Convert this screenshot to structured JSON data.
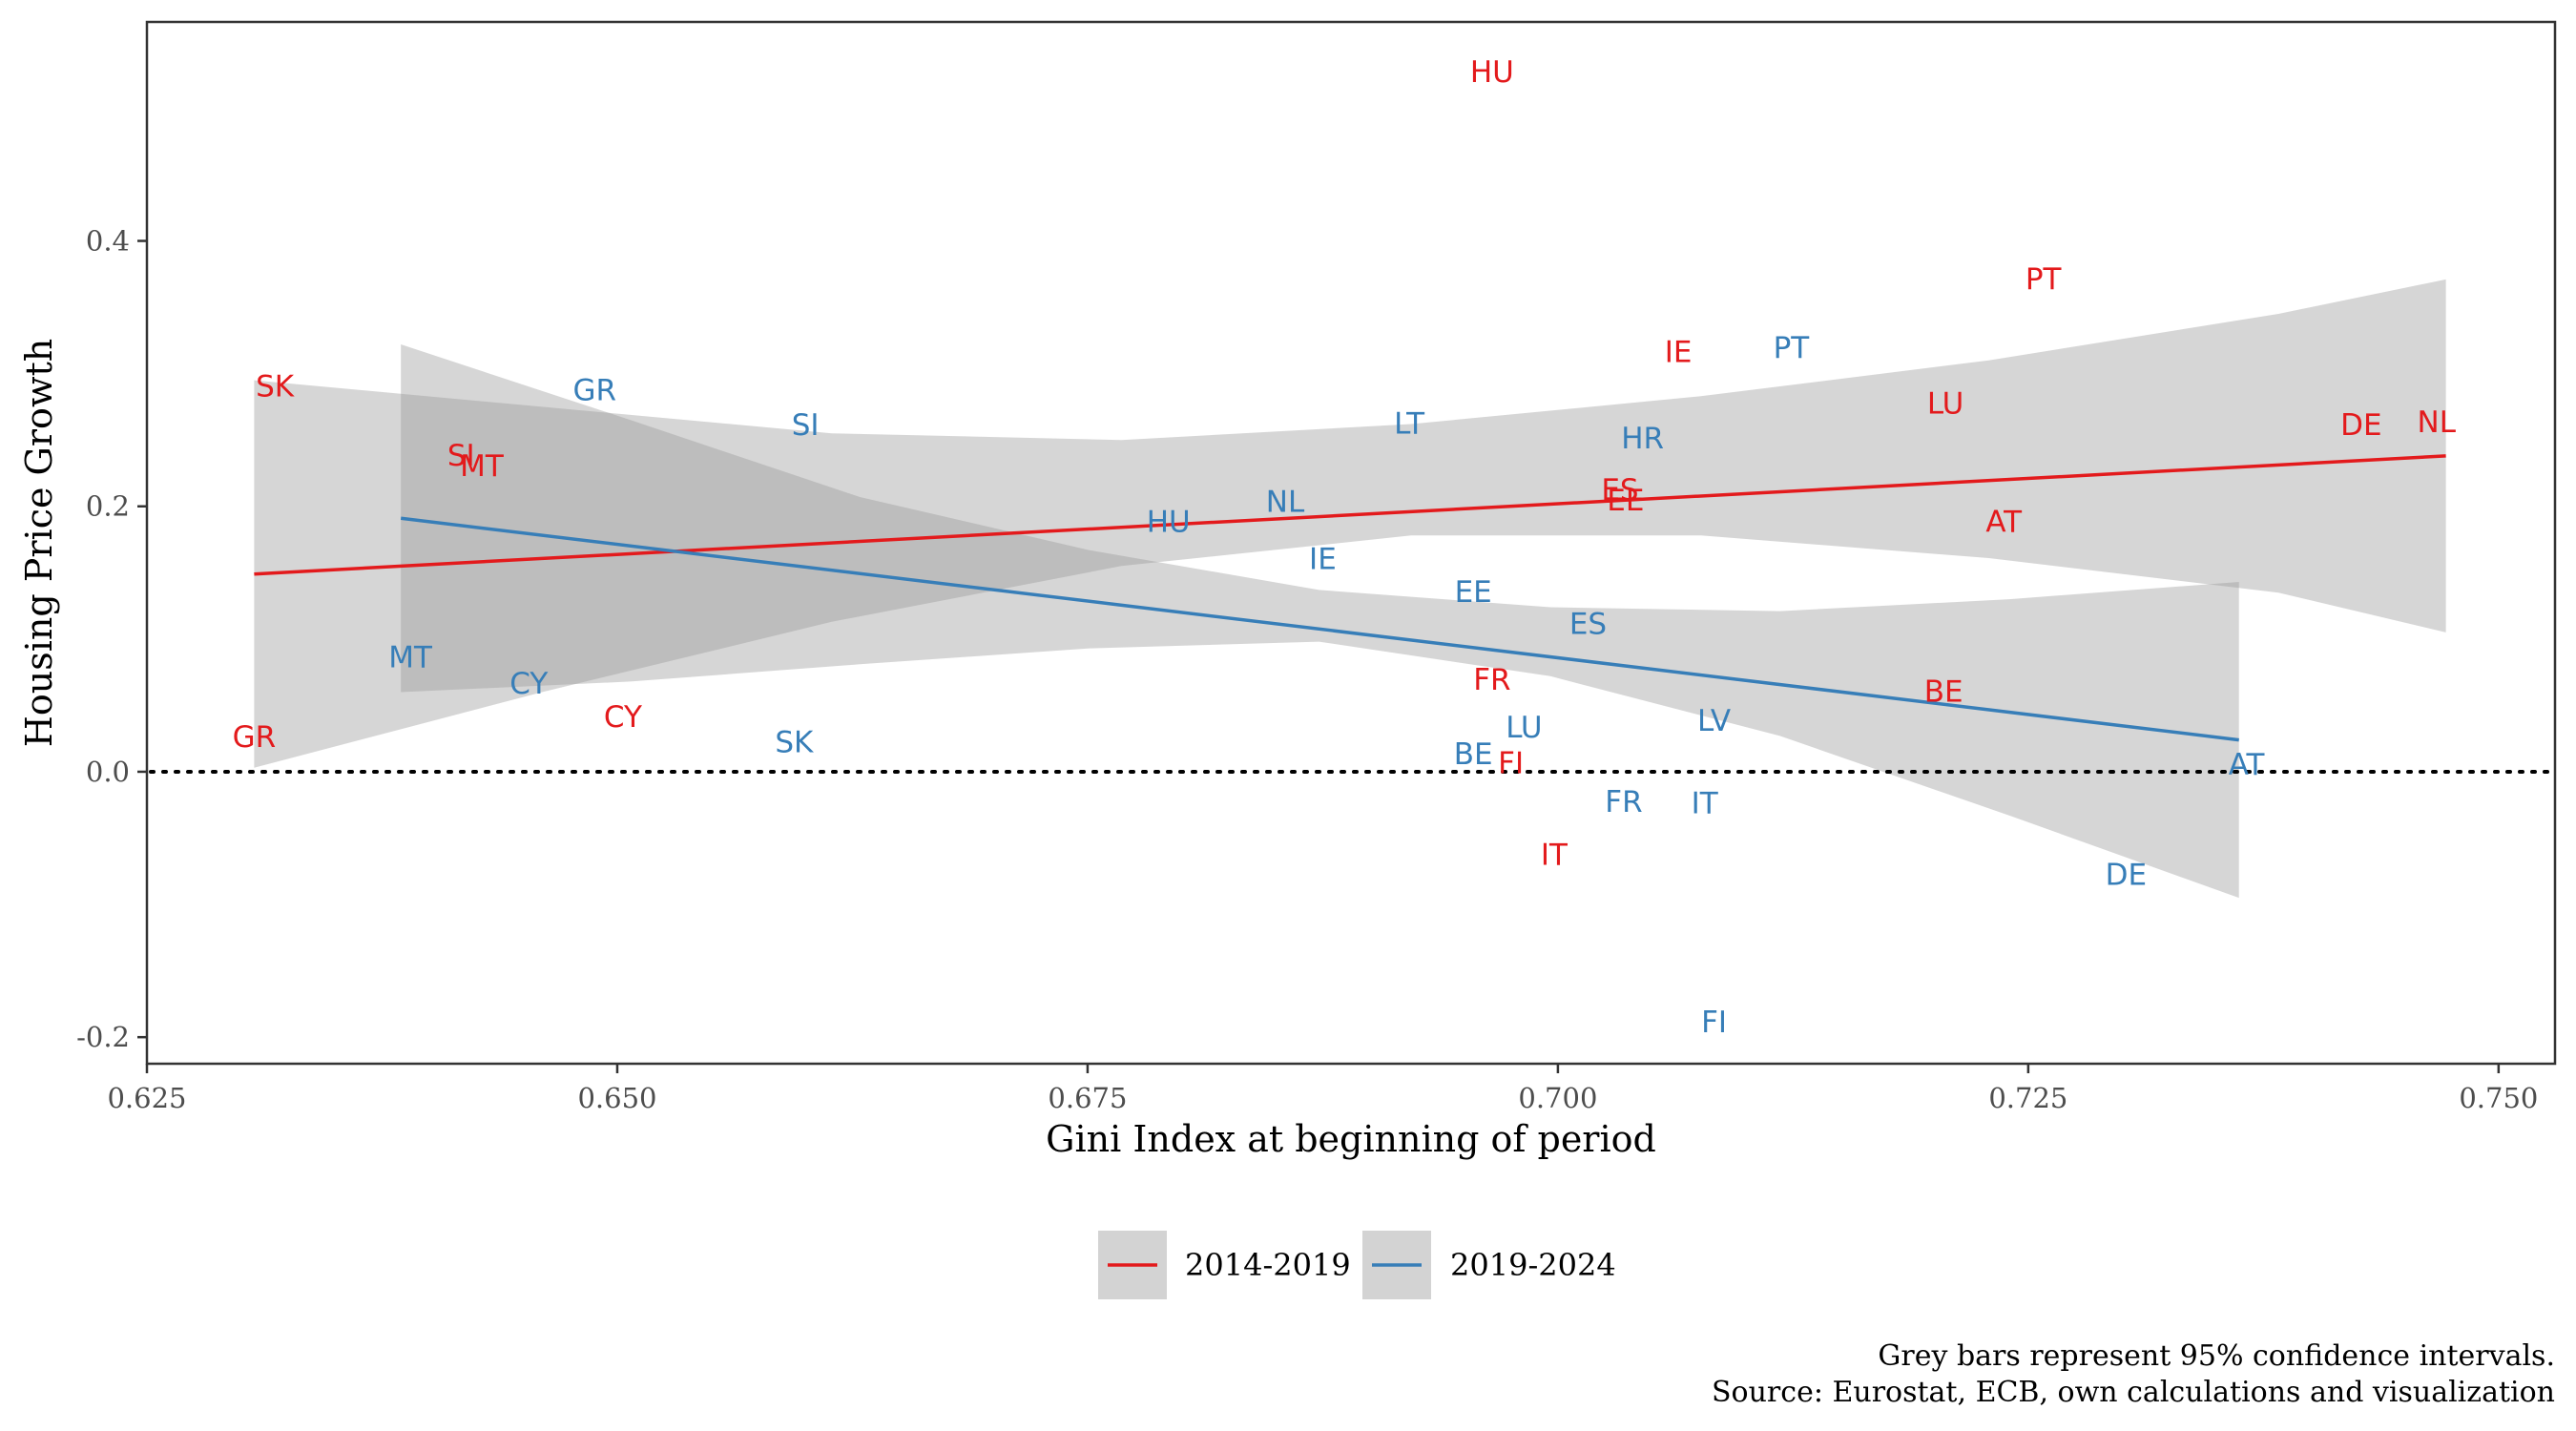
{
  "chart_data": {
    "type": "scatter",
    "title": "",
    "xlabel": "Gini Index at beginning of period",
    "ylabel": "Housing Price Growth",
    "xlim": [
      0.625,
      0.753
    ],
    "ylim": [
      -0.22,
      0.565
    ],
    "x_ticks": [
      0.625,
      0.65,
      0.675,
      0.7,
      0.725,
      0.75
    ],
    "x_tick_labels": [
      "0.625",
      "0.650",
      "0.675",
      "0.700",
      "0.725",
      "0.750"
    ],
    "y_ticks": [
      -0.2,
      0.0,
      0.2,
      0.4
    ],
    "y_tick_labels": [
      "-0.2",
      "0.0",
      "0.2",
      "0.4"
    ],
    "reference_line": {
      "y": 0,
      "style": "dotted"
    },
    "grid": false,
    "legend_position": "bottom",
    "series": [
      {
        "name": "2014-2019",
        "color": "#e31a1c",
        "points": [
          {
            "label": "HU",
            "x": 0.6965,
            "y": 0.527
          },
          {
            "label": "PT",
            "x": 0.7258,
            "y": 0.371
          },
          {
            "label": "IE",
            "x": 0.7064,
            "y": 0.316
          },
          {
            "label": "SK",
            "x": 0.6318,
            "y": 0.29
          },
          {
            "label": "LU",
            "x": 0.7206,
            "y": 0.277
          },
          {
            "label": "DE",
            "x": 0.7427,
            "y": 0.261
          },
          {
            "label": "NL",
            "x": 0.7467,
            "y": 0.263
          },
          {
            "label": "SI",
            "x": 0.6417,
            "y": 0.238
          },
          {
            "label": "MT",
            "x": 0.6428,
            "y": 0.23
          },
          {
            "label": "ES",
            "x": 0.7033,
            "y": 0.212
          },
          {
            "label": "EE",
            "x": 0.7036,
            "y": 0.204
          },
          {
            "label": "AT",
            "x": 0.7237,
            "y": 0.188
          },
          {
            "label": "FR",
            "x": 0.6965,
            "y": 0.069
          },
          {
            "label": "BE",
            "x": 0.7205,
            "y": 0.06
          },
          {
            "label": "CY",
            "x": 0.6503,
            "y": 0.041
          },
          {
            "label": "GR",
            "x": 0.6307,
            "y": 0.026
          },
          {
            "label": "FI",
            "x": 0.6975,
            "y": 0.006
          },
          {
            "label": "IT",
            "x": 0.6998,
            "y": -0.063
          }
        ],
        "fit": {
          "x0": 0.6307,
          "y0": 0.149,
          "x1": 0.7472,
          "y1": 0.238
        },
        "ci": {
          "x": [
            0.6307,
            0.646,
            0.6614,
            0.6768,
            0.6922,
            0.7076,
            0.7229,
            0.7383,
            0.7472
          ],
          "lower": [
            0.003,
            0.06,
            0.113,
            0.155,
            0.178,
            0.178,
            0.161,
            0.135,
            0.105
          ],
          "upper": [
            0.295,
            0.275,
            0.255,
            0.25,
            0.262,
            0.283,
            0.31,
            0.345,
            0.371
          ]
        }
      },
      {
        "name": "2019-2024",
        "color": "#377eb8",
        "points": [
          {
            "label": "PT",
            "x": 0.7124,
            "y": 0.319
          },
          {
            "label": "GR",
            "x": 0.6488,
            "y": 0.287
          },
          {
            "label": "SI",
            "x": 0.66,
            "y": 0.261
          },
          {
            "label": "LT",
            "x": 0.6921,
            "y": 0.262
          },
          {
            "label": "HR",
            "x": 0.7045,
            "y": 0.251
          },
          {
            "label": "NL",
            "x": 0.6855,
            "y": 0.203
          },
          {
            "label": "HU",
            "x": 0.6793,
            "y": 0.188
          },
          {
            "label": "IE",
            "x": 0.6875,
            "y": 0.16
          },
          {
            "label": "EE",
            "x": 0.6955,
            "y": 0.135
          },
          {
            "label": "ES",
            "x": 0.7016,
            "y": 0.111
          },
          {
            "label": "MT",
            "x": 0.639,
            "y": 0.086
          },
          {
            "label": "CY",
            "x": 0.6453,
            "y": 0.066
          },
          {
            "label": "LV",
            "x": 0.7083,
            "y": 0.038
          },
          {
            "label": "LU",
            "x": 0.6982,
            "y": 0.033
          },
          {
            "label": "SK",
            "x": 0.6594,
            "y": 0.022
          },
          {
            "label": "BE",
            "x": 0.6955,
            "y": 0.013
          },
          {
            "label": "AT",
            "x": 0.7366,
            "y": 0.005
          },
          {
            "label": "FR",
            "x": 0.7035,
            "y": -0.023
          },
          {
            "label": "IT",
            "x": 0.7078,
            "y": -0.024
          },
          {
            "label": "DE",
            "x": 0.7302,
            "y": -0.078
          },
          {
            "label": "FI",
            "x": 0.7083,
            "y": -0.189
          }
        ],
        "fit": {
          "x0": 0.6385,
          "y0": 0.191,
          "x1": 0.7362,
          "y1": 0.024
        },
        "ci": {
          "x": [
            0.6385,
            0.6507,
            0.6629,
            0.6751,
            0.6873,
            0.6996,
            0.7118,
            0.724,
            0.7362
          ],
          "lower": [
            0.06,
            0.068,
            0.081,
            0.093,
            0.098,
            0.072,
            0.027,
            -0.033,
            -0.095
          ],
          "upper": [
            0.322,
            0.265,
            0.207,
            0.167,
            0.137,
            0.124,
            0.121,
            0.13,
            0.143
          ]
        }
      }
    ]
  },
  "legend": {
    "items": [
      {
        "label": "2014-2019",
        "color": "#e31a1c"
      },
      {
        "label": "2019-2024",
        "color": "#377eb8"
      }
    ]
  },
  "caption": {
    "line1": "Grey bars represent 95% confidence intervals.",
    "line2": "Source: Eurostat, ECB, own calculations and visualization"
  }
}
